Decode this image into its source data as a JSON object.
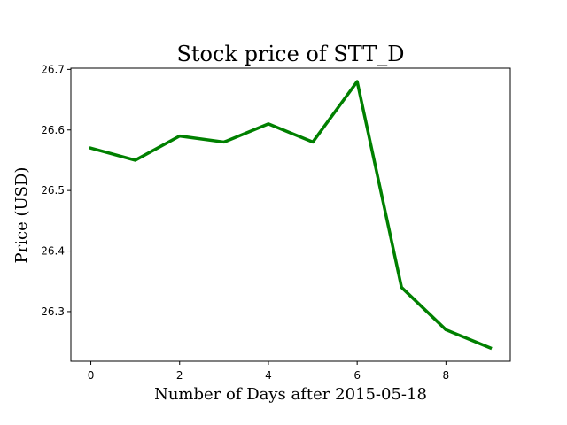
{
  "chart_data": {
    "type": "line",
    "title": "Stock price of STT_D",
    "xlabel": "Number of Days after 2015-05-18",
    "ylabel": "Price (USD)",
    "x": [
      0,
      1,
      2,
      3,
      4,
      5,
      6,
      7,
      8,
      9
    ],
    "series": [
      {
        "values": [
          26.57,
          26.55,
          26.59,
          26.58,
          26.61,
          26.58,
          26.68,
          26.34,
          26.27,
          26.24
        ],
        "color": "#008000"
      }
    ],
    "xlim": [
      -0.45,
      9.45
    ],
    "ylim": [
      26.218,
      26.702
    ],
    "xticks": [
      0,
      2,
      4,
      6,
      8
    ],
    "xtick_labels": [
      "0",
      "2",
      "4",
      "6",
      "8"
    ],
    "yticks": [
      26.3,
      26.4,
      26.5,
      26.6,
      26.7
    ],
    "ytick_labels": [
      "26.3",
      "26.4",
      "26.5",
      "26.6",
      "26.7"
    ],
    "grid": false,
    "legend": "none"
  }
}
